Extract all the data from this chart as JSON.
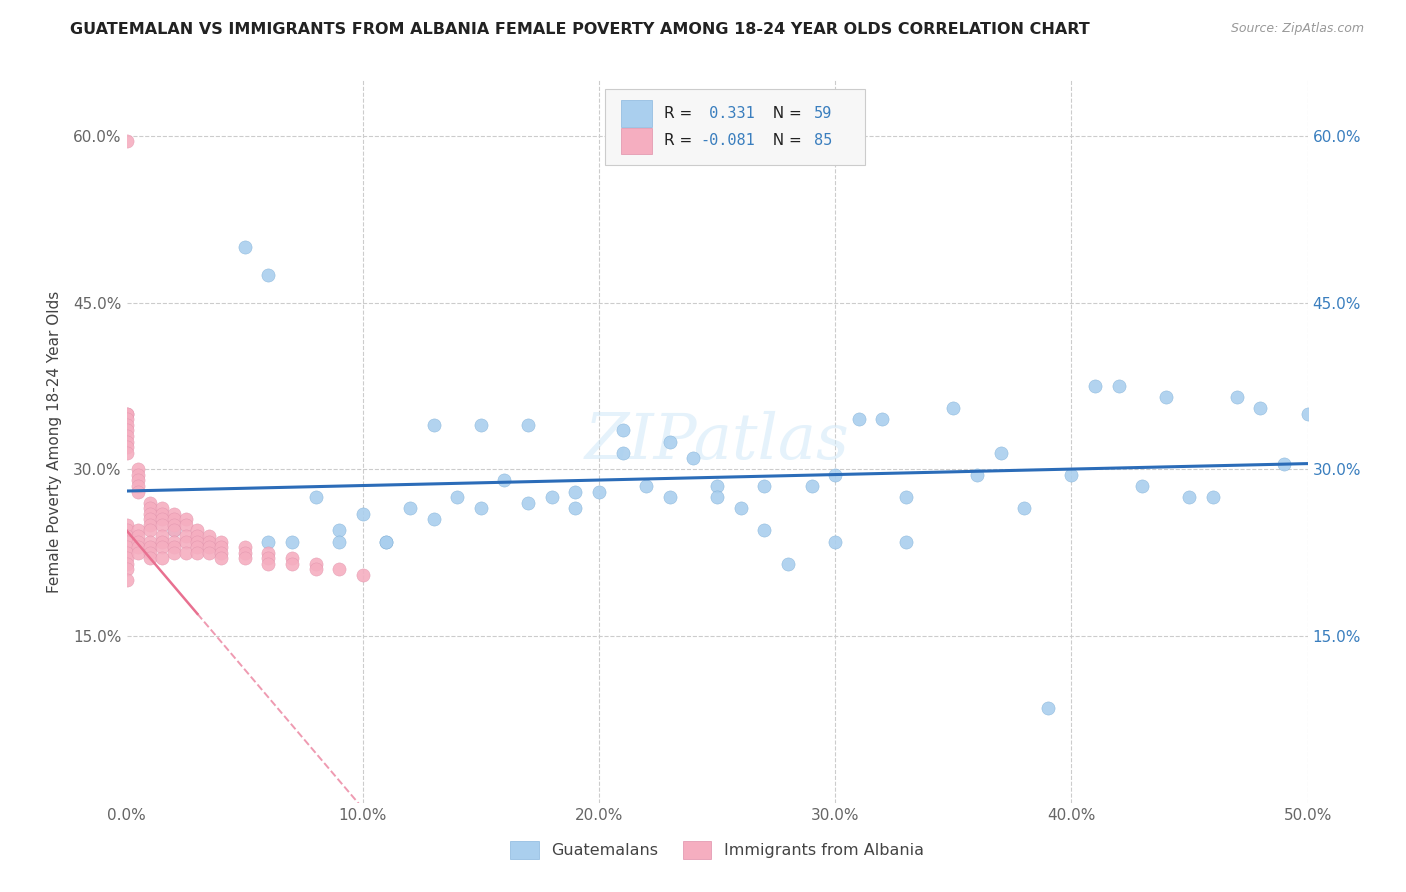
{
  "title": "GUATEMALAN VS IMMIGRANTS FROM ALBANIA FEMALE POVERTY AMONG 18-24 YEAR OLDS CORRELATION CHART",
  "source": "Source: ZipAtlas.com",
  "ylabel": "Female Poverty Among 18-24 Year Olds",
  "xlim": [
    0.0,
    0.5
  ],
  "ylim": [
    0.0,
    0.65
  ],
  "xticks": [
    0.0,
    0.1,
    0.2,
    0.3,
    0.4,
    0.5
  ],
  "xticklabels": [
    "0.0%",
    "10.0%",
    "20.0%",
    "30.0%",
    "40.0%",
    "50.0%"
  ],
  "yticks": [
    0.0,
    0.15,
    0.3,
    0.45,
    0.6
  ],
  "yticklabels": [
    "",
    "15.0%",
    "30.0%",
    "45.0%",
    "60.0%"
  ],
  "color_blue": "#aacfee",
  "color_pink": "#f5aec0",
  "line_blue": "#2b6cb8",
  "line_pink": "#e87090",
  "watermark": "ZIPatlas",
  "legend1_label": "Guatemalans",
  "legend2_label": "Immigrants from Albania",
  "guat_x": [
    0.02,
    0.05,
    0.06,
    0.08,
    0.09,
    0.1,
    0.11,
    0.12,
    0.13,
    0.14,
    0.15,
    0.16,
    0.17,
    0.18,
    0.19,
    0.2,
    0.21,
    0.22,
    0.23,
    0.24,
    0.25,
    0.26,
    0.27,
    0.28,
    0.29,
    0.3,
    0.31,
    0.32,
    0.33,
    0.35,
    0.36,
    0.37,
    0.38,
    0.39,
    0.4,
    0.41,
    0.42,
    0.43,
    0.44,
    0.45,
    0.46,
    0.47,
    0.48,
    0.49,
    0.5,
    0.13,
    0.15,
    0.17,
    0.19,
    0.21,
    0.23,
    0.25,
    0.27,
    0.11,
    0.09,
    0.07,
    0.06,
    0.3,
    0.33
  ],
  "guat_y": [
    0.245,
    0.5,
    0.475,
    0.275,
    0.245,
    0.26,
    0.235,
    0.265,
    0.255,
    0.275,
    0.265,
    0.29,
    0.27,
    0.275,
    0.265,
    0.28,
    0.315,
    0.285,
    0.325,
    0.31,
    0.285,
    0.265,
    0.285,
    0.215,
    0.285,
    0.295,
    0.345,
    0.345,
    0.275,
    0.355,
    0.295,
    0.315,
    0.265,
    0.085,
    0.295,
    0.375,
    0.375,
    0.285,
    0.365,
    0.275,
    0.275,
    0.365,
    0.355,
    0.305,
    0.35,
    0.34,
    0.34,
    0.34,
    0.28,
    0.335,
    0.275,
    0.275,
    0.245,
    0.235,
    0.235,
    0.235,
    0.235,
    0.235,
    0.235
  ],
  "alb_x": [
    0.0,
    0.0,
    0.0,
    0.0,
    0.0,
    0.0,
    0.0,
    0.0,
    0.0,
    0.0,
    0.0,
    0.0,
    0.0,
    0.0,
    0.0,
    0.0,
    0.0,
    0.0,
    0.0,
    0.0,
    0.005,
    0.005,
    0.005,
    0.005,
    0.005,
    0.005,
    0.005,
    0.005,
    0.005,
    0.005,
    0.01,
    0.01,
    0.01,
    0.01,
    0.01,
    0.01,
    0.01,
    0.01,
    0.01,
    0.01,
    0.015,
    0.015,
    0.015,
    0.015,
    0.015,
    0.015,
    0.015,
    0.015,
    0.02,
    0.02,
    0.02,
    0.02,
    0.02,
    0.02,
    0.02,
    0.025,
    0.025,
    0.025,
    0.025,
    0.025,
    0.03,
    0.03,
    0.03,
    0.03,
    0.03,
    0.035,
    0.035,
    0.035,
    0.035,
    0.04,
    0.04,
    0.04,
    0.04,
    0.05,
    0.05,
    0.05,
    0.06,
    0.06,
    0.06,
    0.07,
    0.07,
    0.08,
    0.08,
    0.09,
    0.1
  ],
  "alb_y": [
    0.595,
    0.35,
    0.35,
    0.345,
    0.34,
    0.335,
    0.33,
    0.325,
    0.32,
    0.315,
    0.25,
    0.245,
    0.24,
    0.235,
    0.23,
    0.225,
    0.22,
    0.215,
    0.21,
    0.2,
    0.3,
    0.295,
    0.29,
    0.285,
    0.28,
    0.245,
    0.24,
    0.235,
    0.23,
    0.225,
    0.27,
    0.265,
    0.26,
    0.255,
    0.25,
    0.245,
    0.235,
    0.23,
    0.225,
    0.22,
    0.265,
    0.26,
    0.255,
    0.25,
    0.24,
    0.235,
    0.23,
    0.22,
    0.26,
    0.255,
    0.25,
    0.245,
    0.235,
    0.23,
    0.225,
    0.255,
    0.25,
    0.24,
    0.235,
    0.225,
    0.245,
    0.24,
    0.235,
    0.23,
    0.225,
    0.24,
    0.235,
    0.23,
    0.225,
    0.235,
    0.23,
    0.225,
    0.22,
    0.23,
    0.225,
    0.22,
    0.225,
    0.22,
    0.215,
    0.22,
    0.215,
    0.215,
    0.21,
    0.21,
    0.205
  ]
}
